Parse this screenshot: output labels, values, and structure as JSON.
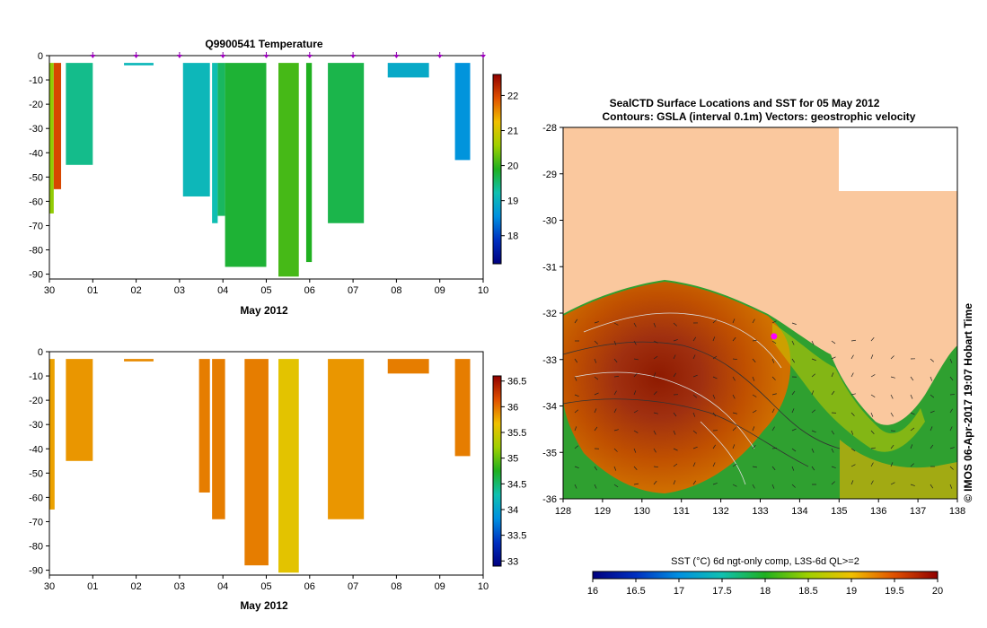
{
  "chart_data": [
    {
      "type": "heatmap",
      "title": "Q9900541  Temperature",
      "xlabel": "May 2012",
      "ylabel": "",
      "xlim": [
        0,
        10
      ],
      "ylim": [
        -92,
        0
      ],
      "x_tick_labels": [
        "30",
        "01",
        "02",
        "03",
        "04",
        "05",
        "06",
        "07",
        "08",
        "09",
        "10"
      ],
      "y_ticks": [
        0,
        -10,
        -20,
        -30,
        -40,
        -50,
        -60,
        -70,
        -80,
        -90
      ],
      "y_tick_labels": [
        "0",
        "-10",
        "-20",
        "-30",
        "-40",
        "-50",
        "-60",
        "-70",
        "-80",
        "-90"
      ],
      "profile_markers_x": [
        1,
        2,
        3,
        4,
        5,
        6,
        7,
        8,
        9,
        10
      ],
      "colorbar": {
        "min": 17.2,
        "max": 22.6,
        "ticks": [
          18,
          19,
          20,
          21,
          22
        ],
        "tick_labels": [
          "18",
          "19",
          "20",
          "21",
          "22"
        ]
      },
      "profiles": [
        {
          "x0": 0.0,
          "x1": 0.1,
          "depth": -65,
          "value": 20.5
        },
        {
          "x0": 0.1,
          "x1": 0.27,
          "depth": -55,
          "value": 22.0
        },
        {
          "x0": 0.38,
          "x1": 1.0,
          "depth": -45,
          "value": 19.4
        },
        {
          "x0": 1.72,
          "x1": 2.4,
          "depth": -4,
          "value": 19.1
        },
        {
          "x0": 3.08,
          "x1": 3.7,
          "depth": -58,
          "value": 19.1
        },
        {
          "x0": 3.75,
          "x1": 3.88,
          "depth": -69,
          "value": 19.2
        },
        {
          "x0": 3.88,
          "x1": 4.05,
          "depth": -66,
          "value": 19.6
        },
        {
          "x0": 4.05,
          "x1": 5.0,
          "depth": -87,
          "value": 19.8
        },
        {
          "x0": 5.28,
          "x1": 5.75,
          "depth": -91,
          "value": 20.1
        },
        {
          "x0": 5.92,
          "x1": 6.05,
          "depth": -85,
          "value": 19.9
        },
        {
          "x0": 6.42,
          "x1": 7.25,
          "depth": -69,
          "value": 19.7
        },
        {
          "x0": 7.8,
          "x1": 8.75,
          "depth": -9,
          "value": 18.9
        },
        {
          "x0": 9.35,
          "x1": 9.7,
          "depth": -43,
          "value": 18.6
        }
      ]
    },
    {
      "type": "heatmap",
      "title": "",
      "xlabel": "May 2012",
      "ylabel": "",
      "xlim": [
        0,
        10
      ],
      "ylim": [
        -92,
        0
      ],
      "x_tick_labels": [
        "30",
        "01",
        "02",
        "03",
        "04",
        "05",
        "06",
        "07",
        "08",
        "09",
        "10"
      ],
      "y_ticks": [
        0,
        -10,
        -20,
        -30,
        -40,
        -50,
        -60,
        -70,
        -80,
        -90
      ],
      "y_tick_labels": [
        "0",
        "-10",
        "-20",
        "-30",
        "-40",
        "-50",
        "-60",
        "-70",
        "-80",
        "-90"
      ],
      "colorbar": {
        "min": 32.9,
        "max": 36.6,
        "ticks": [
          33,
          33.5,
          34,
          34.5,
          35,
          35.5,
          36,
          36.5
        ],
        "tick_labels": [
          "33",
          "33.5",
          "34",
          "34.5",
          "35",
          "35.5",
          "36",
          "36.5"
        ]
      },
      "profiles": [
        {
          "x0": 0.0,
          "x1": 0.12,
          "depth": -65,
          "value": 35.8
        },
        {
          "x0": 0.38,
          "x1": 1.0,
          "depth": -45,
          "value": 35.85
        },
        {
          "x0": 1.72,
          "x1": 2.4,
          "depth": -4,
          "value": 35.9
        },
        {
          "x0": 3.45,
          "x1": 3.7,
          "depth": -58,
          "value": 35.95
        },
        {
          "x0": 3.75,
          "x1": 4.05,
          "depth": -69,
          "value": 35.95
        },
        {
          "x0": 4.5,
          "x1": 5.05,
          "depth": -88,
          "value": 35.95
        },
        {
          "x0": 5.28,
          "x1": 5.75,
          "depth": -91,
          "value": 35.6
        },
        {
          "x0": 6.42,
          "x1": 7.25,
          "depth": -69,
          "value": 35.85
        },
        {
          "x0": 7.8,
          "x1": 8.75,
          "depth": -9,
          "value": 35.95
        },
        {
          "x0": 9.35,
          "x1": 9.7,
          "depth": -43,
          "value": 35.95
        }
      ]
    },
    {
      "type": "heatmap",
      "title": "SealCTD Surface Locations and SST for 05 May 2012",
      "subtitle": "Contours: GSLA (interval 0.1m)  Vectors: geostrophic velocity",
      "xlabel": "",
      "ylabel": "",
      "xlim": [
        128,
        138
      ],
      "ylim": [
        -36,
        -28
      ],
      "x_ticks": [
        128,
        129,
        130,
        131,
        132,
        133,
        134,
        135,
        136,
        137,
        138
      ],
      "x_tick_labels": [
        "128",
        "129",
        "130",
        "131",
        "132",
        "133",
        "134",
        "135",
        "136",
        "137",
        "138"
      ],
      "y_ticks": [
        -28,
        -29,
        -30,
        -31,
        -32,
        -33,
        -34,
        -35,
        -36
      ],
      "y_tick_labels": [
        "-28",
        "-29",
        "-30",
        "-31",
        "-32",
        "-33",
        "-34",
        "-35",
        "-36"
      ],
      "colorbar": {
        "label": "SST (°C) 6d ngt-only comp, L3S-6d QL>=2",
        "min": 16,
        "max": 20,
        "ticks": [
          16,
          16.5,
          17,
          17.5,
          18,
          18.5,
          19,
          19.5,
          20
        ],
        "tick_labels": [
          "16",
          "16.5",
          "17",
          "17.5",
          "18",
          "18.5",
          "19",
          "19.5",
          "20"
        ]
      },
      "seal_locations": [
        {
          "lon": 133.35,
          "lat": -32.5
        }
      ],
      "side_label": "© IMOS 06-Apr-2017 19:07 Hobart Time"
    }
  ]
}
